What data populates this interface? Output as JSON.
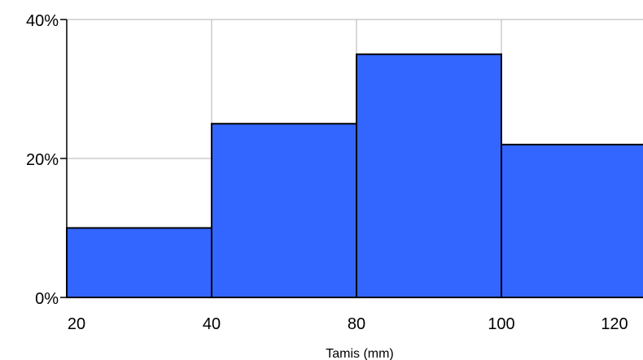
{
  "chart_data": {
    "type": "bar",
    "title": "",
    "xlabel": "Tamis (mm)",
    "ylabel": "",
    "ylim": [
      0,
      40
    ],
    "grid": true,
    "bar_color": "#3366ff",
    "edge_color": "#000000",
    "grid_color": "#b3b3b3",
    "categories": [
      "20–40",
      "40–80",
      "80–100",
      "100–120"
    ],
    "values": [
      10,
      25,
      35,
      22
    ],
    "x_tick_labels": [
      "20",
      "40",
      "80",
      "100",
      "120"
    ],
    "y_tick_labels": [
      "0%",
      "20%",
      "40%"
    ],
    "y_tick_values": [
      0,
      20,
      40
    ]
  }
}
